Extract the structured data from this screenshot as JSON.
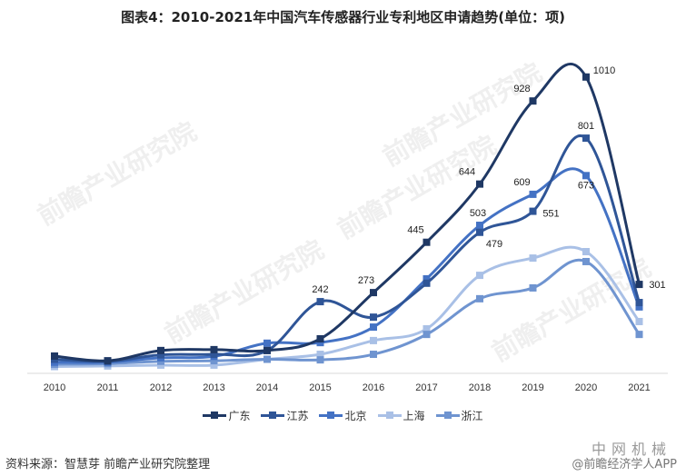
{
  "title": "图表4：2010-2021年中国汽车传感器行业专利地区申请趋势(单位：项)",
  "source": "资料来源：智慧芽 前瞻产业研究院整理",
  "watermark_text": "前瞻产业研究院",
  "corner_watermark": {
    "logo": "中网机械",
    "handle": "@前瞻经济学人APP"
  },
  "legend": [
    {
      "label": "广东",
      "color": "#1f3864"
    },
    {
      "label": "江苏",
      "color": "#2f5597"
    },
    {
      "label": "北京",
      "color": "#4472c4"
    },
    {
      "label": "上海",
      "color": "#a9c0e6"
    },
    {
      "label": "浙江",
      "color": "#6f94d0"
    }
  ],
  "chart_data": {
    "type": "line",
    "title": "2010-2021年中国汽车传感器行业专利地区申请趋势(单位：项)",
    "xlabel": "",
    "ylabel": "项",
    "categories": [
      "2010",
      "2011",
      "2012",
      "2013",
      "2014",
      "2015",
      "2016",
      "2017",
      "2018",
      "2019",
      "2020",
      "2021"
    ],
    "ylim": [
      0,
      1050
    ],
    "grid": false,
    "legend_position": "bottom",
    "series": [
      {
        "name": "广东",
        "color": "#1f3864",
        "values": [
          56,
          40,
          75,
          78,
          75,
          115,
          273,
          445,
          644,
          928,
          1010,
          301
        ],
        "labels": [
          null,
          null,
          null,
          null,
          null,
          null,
          "273",
          "445",
          "644",
          "928",
          "1010",
          "301"
        ]
      },
      {
        "name": "江苏",
        "color": "#2f5597",
        "values": [
          45,
          38,
          60,
          62,
          75,
          242,
          189,
          305,
          479,
          551,
          801,
          239
        ],
        "labels": [
          null,
          null,
          null,
          null,
          null,
          "242",
          null,
          null,
          "479",
          "551",
          "801",
          null
        ]
      },
      {
        "name": "北京",
        "color": "#4472c4",
        "values": [
          35,
          35,
          50,
          55,
          100,
          102,
          155,
          320,
          503,
          609,
          673,
          224
        ],
        "labels": [
          null,
          null,
          null,
          null,
          null,
          null,
          null,
          null,
          "503",
          "609",
          "673",
          null
        ]
      },
      {
        "name": "上海",
        "color": "#a9c0e6",
        "values": [
          20,
          22,
          25,
          25,
          45,
          62,
          109,
          149,
          332,
          391,
          413,
          174
        ],
        "labels": [
          null,
          null,
          null,
          null,
          null,
          null,
          null,
          null,
          null,
          null,
          null,
          null
        ]
      },
      {
        "name": "浙江",
        "color": "#6f94d0",
        "values": [
          28,
          30,
          38,
          40,
          45,
          43,
          62,
          130,
          252,
          289,
          379,
          130
        ],
        "labels": [
          null,
          null,
          null,
          null,
          null,
          null,
          null,
          null,
          null,
          null,
          null,
          null
        ]
      }
    ]
  }
}
